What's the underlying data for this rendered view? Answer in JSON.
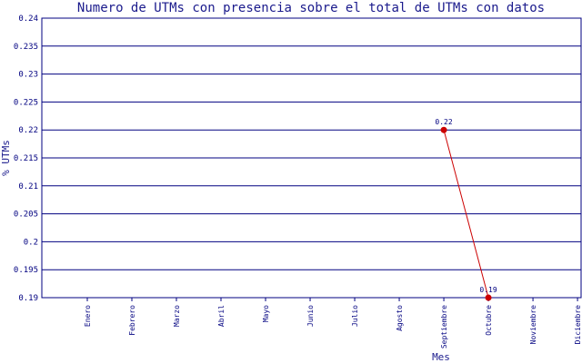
{
  "chart_data": {
    "type": "line",
    "title": "Numero de UTMs con presencia sobre el total de UTMs con datos",
    "xlabel": "Mes",
    "ylabel": "% UTMs",
    "categories": [
      "Enero",
      "Febrero",
      "Marzo",
      "Abril",
      "Mayo",
      "Junio",
      "Julio",
      "Agosto",
      "Septiembre",
      "Octubre",
      "Noviembre",
      "Diciembre"
    ],
    "yticks": [
      "0.19",
      "0.195",
      "0.2",
      "0.205",
      "0.21",
      "0.215",
      "0.22",
      "0.225",
      "0.23",
      "0.235",
      "0.24"
    ],
    "ylim": [
      0.19,
      0.24
    ],
    "grid": true,
    "series": [
      {
        "points": [
          {
            "x": "Septiembre",
            "y": 0.22,
            "label": "0.22"
          },
          {
            "x": "Octubre",
            "y": 0.19,
            "label": "0.19"
          }
        ]
      }
    ],
    "colors": {
      "title": "#1a1a8c",
      "grid": "#000080",
      "line": "#cc0000",
      "marker": "#cc0000",
      "ticks": "#000080"
    }
  }
}
